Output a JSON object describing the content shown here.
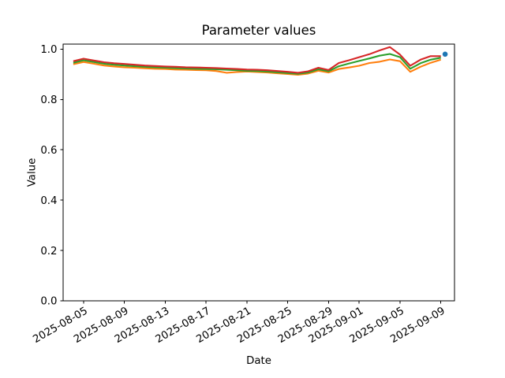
{
  "meta": {
    "description": "Matplotlib-style line chart figure on a plain white canvas",
    "background_color": "#ffffff",
    "axis_color": "#000000"
  },
  "chart_data": {
    "type": "line",
    "title": "Parameter values",
    "xlabel": "Date",
    "ylabel": "Value",
    "legend": "none",
    "grid": false,
    "x": [
      "2025-08-04",
      "2025-08-05",
      "2025-08-06",
      "2025-08-07",
      "2025-08-08",
      "2025-08-09",
      "2025-08-10",
      "2025-08-11",
      "2025-08-12",
      "2025-08-13",
      "2025-08-14",
      "2025-08-15",
      "2025-08-16",
      "2025-08-17",
      "2025-08-18",
      "2025-08-19",
      "2025-08-20",
      "2025-08-21",
      "2025-08-22",
      "2025-08-23",
      "2025-08-24",
      "2025-08-25",
      "2025-08-26",
      "2025-08-27",
      "2025-08-28",
      "2025-08-29",
      "2025-08-30",
      "2025-08-31",
      "2025-09-01",
      "2025-09-02",
      "2025-09-03",
      "2025-09-04",
      "2025-09-05",
      "2025-09-06",
      "2025-09-07",
      "2025-09-08",
      "2025-09-09"
    ],
    "series": [
      {
        "name": "series-orange",
        "color": "#ff7f0e",
        "values": [
          0.94,
          0.949,
          0.942,
          0.935,
          0.931,
          0.928,
          0.926,
          0.924,
          0.922,
          0.921,
          0.919,
          0.918,
          0.917,
          0.916,
          0.913,
          0.906,
          0.909,
          0.911,
          0.909,
          0.907,
          0.904,
          0.901,
          0.898,
          0.903,
          0.914,
          0.907,
          0.921,
          0.927,
          0.934,
          0.945,
          0.95,
          0.959,
          0.952,
          0.91,
          0.93,
          0.946,
          0.958
        ]
      },
      {
        "name": "series-green",
        "color": "#2ca02c",
        "values": [
          0.946,
          0.956,
          0.949,
          0.942,
          0.938,
          0.935,
          0.932,
          0.93,
          0.928,
          0.926,
          0.925,
          0.923,
          0.922,
          0.921,
          0.92,
          0.918,
          0.916,
          0.914,
          0.913,
          0.911,
          0.908,
          0.905,
          0.902,
          0.907,
          0.92,
          0.912,
          0.932,
          0.943,
          0.953,
          0.963,
          0.974,
          0.981,
          0.968,
          0.922,
          0.944,
          0.958,
          0.966
        ]
      },
      {
        "name": "series-red",
        "color": "#d62728",
        "values": [
          0.952,
          0.962,
          0.955,
          0.948,
          0.944,
          0.941,
          0.938,
          0.935,
          0.933,
          0.931,
          0.93,
          0.928,
          0.927,
          0.926,
          0.925,
          0.923,
          0.921,
          0.919,
          0.918,
          0.916,
          0.913,
          0.91,
          0.906,
          0.912,
          0.926,
          0.917,
          0.945,
          0.956,
          0.968,
          0.98,
          0.995,
          1.008,
          0.978,
          0.934,
          0.958,
          0.972,
          0.972
        ]
      },
      {
        "name": "series-blue",
        "color": "#1f77b4",
        "point": {
          "x": "2025-09-09T10:00:00Z",
          "value": 0.98
        }
      }
    ],
    "x_axis": {
      "min": "2025-08-03T00:00:00Z",
      "max": "2025-09-10T08:00:00Z",
      "ticks": [
        "2025-08-05",
        "2025-08-09",
        "2025-08-13",
        "2025-08-17",
        "2025-08-21",
        "2025-08-25",
        "2025-08-29",
        "2025-09-01",
        "2025-09-05",
        "2025-09-09"
      ],
      "tick_rotation_deg": 30
    },
    "y_axis": {
      "min": 0,
      "max": 1.02,
      "ticks": [
        0.0,
        0.2,
        0.4,
        0.6,
        0.8,
        1.0
      ],
      "tick_labels": [
        "0.0",
        "0.2",
        "0.4",
        "0.6",
        "0.8",
        "1.0"
      ]
    }
  }
}
